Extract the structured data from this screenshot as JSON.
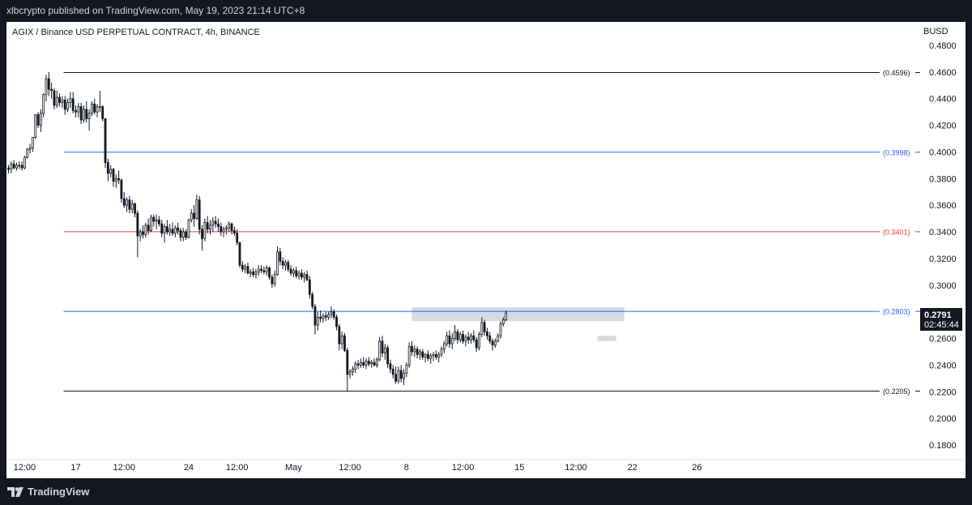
{
  "header": {
    "published": "xlbcrypto published on TradingView.com, May 19, 2023 21:14 UTC+8"
  },
  "footer": {
    "brand": "TradingView"
  },
  "chart_data": {
    "type": "candlestick",
    "title": "AGIX / Binance USD PERPETUAL CONTRACT, 4h, BINANCE",
    "currency": "BUSD",
    "ylim": [
      0.17,
      0.49
    ],
    "y_ticks": [
      "0.1800",
      "0.2000",
      "0.2200",
      "0.2400",
      "0.2600",
      "0.2800",
      "0.3000",
      "0.3200",
      "0.3400",
      "0.3600",
      "0.3800",
      "0.4000",
      "0.4200",
      "0.4400",
      "0.4600",
      "0.4800"
    ],
    "x_ticks": [
      {
        "label": "12:00",
        "bar": 6
      },
      {
        "label": "17",
        "bar": 25
      },
      {
        "label": "12:00",
        "bar": 43
      },
      {
        "label": "24",
        "bar": 67
      },
      {
        "label": "12:00",
        "bar": 85
      },
      {
        "label": "May",
        "bar": 106
      },
      {
        "label": "12:00",
        "bar": 127
      },
      {
        "label": "8",
        "bar": 148
      },
      {
        "label": "12:00",
        "bar": 169
      },
      {
        "label": "15",
        "bar": 190
      },
      {
        "label": "12:00",
        "bar": 211
      },
      {
        "label": "22",
        "bar": 232
      },
      {
        "label": "26",
        "bar": 256
      }
    ],
    "horizontal_lines": [
      {
        "value": 0.4596,
        "label": "(0.4596)",
        "color": "#131722"
      },
      {
        "value": 0.3998,
        "label": "(0.3998)",
        "color": "#2962ff"
      },
      {
        "value": 0.3401,
        "label": "(0.3401)",
        "color": "#f23645"
      },
      {
        "value": 0.2803,
        "label": "(0.2803)",
        "color": "#2962ff"
      },
      {
        "value": 0.2205,
        "label": "(0.2205)",
        "color": "#131722"
      }
    ],
    "zones": [
      {
        "bar_start": 150,
        "bar_end": 229,
        "top": 0.2835,
        "bottom": 0.273
      },
      {
        "bar_start": 219,
        "bar_end": 226,
        "top": 0.262,
        "bottom": 0.258
      }
    ],
    "last_price": "0.2791",
    "countdown": "02:45:44",
    "candles": [
      [
        0.388,
        0.39,
        0.384,
        0.387
      ],
      [
        0.387,
        0.393,
        0.384,
        0.391
      ],
      [
        0.391,
        0.394,
        0.387,
        0.388
      ],
      [
        0.388,
        0.392,
        0.386,
        0.39
      ],
      [
        0.39,
        0.393,
        0.387,
        0.39
      ],
      [
        0.39,
        0.393,
        0.386,
        0.388
      ],
      [
        0.388,
        0.397,
        0.387,
        0.396
      ],
      [
        0.396,
        0.403,
        0.395,
        0.402
      ],
      [
        0.402,
        0.406,
        0.399,
        0.403
      ],
      [
        0.403,
        0.411,
        0.4,
        0.411
      ],
      [
        0.411,
        0.428,
        0.41,
        0.428
      ],
      [
        0.428,
        0.43,
        0.418,
        0.42
      ],
      [
        0.42,
        0.432,
        0.415,
        0.429
      ],
      [
        0.429,
        0.444,
        0.426,
        0.443
      ],
      [
        0.443,
        0.458,
        0.438,
        0.455
      ],
      [
        0.455,
        0.46,
        0.442,
        0.447
      ],
      [
        0.447,
        0.452,
        0.44,
        0.446
      ],
      [
        0.446,
        0.448,
        0.432,
        0.435
      ],
      [
        0.435,
        0.446,
        0.433,
        0.441
      ],
      [
        0.441,
        0.444,
        0.434,
        0.437
      ],
      [
        0.437,
        0.442,
        0.433,
        0.439
      ],
      [
        0.439,
        0.442,
        0.428,
        0.432
      ],
      [
        0.432,
        0.44,
        0.43,
        0.437
      ],
      [
        0.437,
        0.445,
        0.433,
        0.44
      ],
      [
        0.44,
        0.445,
        0.429,
        0.431
      ],
      [
        0.431,
        0.435,
        0.426,
        0.43
      ],
      [
        0.43,
        0.437,
        0.426,
        0.434
      ],
      [
        0.434,
        0.437,
        0.421,
        0.424
      ],
      [
        0.424,
        0.435,
        0.422,
        0.432
      ],
      [
        0.432,
        0.438,
        0.422,
        0.425
      ],
      [
        0.425,
        0.432,
        0.416,
        0.429
      ],
      [
        0.429,
        0.438,
        0.427,
        0.436
      ],
      [
        0.436,
        0.44,
        0.428,
        0.43
      ],
      [
        0.43,
        0.436,
        0.426,
        0.434
      ],
      [
        0.434,
        0.446,
        0.43,
        0.434
      ],
      [
        0.434,
        0.435,
        0.423,
        0.425
      ],
      [
        0.425,
        0.425,
        0.388,
        0.392
      ],
      [
        0.392,
        0.395,
        0.378,
        0.384
      ],
      [
        0.384,
        0.39,
        0.381,
        0.387
      ],
      [
        0.387,
        0.388,
        0.374,
        0.378
      ],
      [
        0.378,
        0.383,
        0.373,
        0.38
      ],
      [
        0.38,
        0.386,
        0.376,
        0.379
      ],
      [
        0.379,
        0.38,
        0.362,
        0.365
      ],
      [
        0.365,
        0.37,
        0.358,
        0.36
      ],
      [
        0.36,
        0.366,
        0.355,
        0.364
      ],
      [
        0.364,
        0.367,
        0.354,
        0.357
      ],
      [
        0.357,
        0.364,
        0.354,
        0.361
      ],
      [
        0.361,
        0.362,
        0.351,
        0.354
      ],
      [
        0.354,
        0.356,
        0.321,
        0.337
      ],
      [
        0.337,
        0.342,
        0.333,
        0.34
      ],
      [
        0.34,
        0.345,
        0.335,
        0.338
      ],
      [
        0.338,
        0.347,
        0.336,
        0.345
      ],
      [
        0.345,
        0.35,
        0.338,
        0.341
      ],
      [
        0.341,
        0.353,
        0.34,
        0.351
      ],
      [
        0.351,
        0.353,
        0.344,
        0.348
      ],
      [
        0.348,
        0.353,
        0.342,
        0.349
      ],
      [
        0.349,
        0.352,
        0.344,
        0.346
      ],
      [
        0.346,
        0.349,
        0.336,
        0.339
      ],
      [
        0.339,
        0.346,
        0.332,
        0.344
      ],
      [
        0.344,
        0.349,
        0.338,
        0.34
      ],
      [
        0.34,
        0.346,
        0.337,
        0.342
      ],
      [
        0.342,
        0.347,
        0.337,
        0.339
      ],
      [
        0.339,
        0.345,
        0.336,
        0.343
      ],
      [
        0.343,
        0.347,
        0.338,
        0.341
      ],
      [
        0.341,
        0.343,
        0.333,
        0.336
      ],
      [
        0.336,
        0.343,
        0.333,
        0.34
      ],
      [
        0.34,
        0.342,
        0.334,
        0.336
      ],
      [
        0.336,
        0.35,
        0.335,
        0.349
      ],
      [
        0.349,
        0.357,
        0.347,
        0.354
      ],
      [
        0.354,
        0.36,
        0.344,
        0.35
      ],
      [
        0.35,
        0.368,
        0.349,
        0.364
      ],
      [
        0.364,
        0.367,
        0.338,
        0.342
      ],
      [
        0.342,
        0.345,
        0.326,
        0.335
      ],
      [
        0.335,
        0.35,
        0.333,
        0.347
      ],
      [
        0.347,
        0.352,
        0.339,
        0.342
      ],
      [
        0.342,
        0.349,
        0.338,
        0.345
      ],
      [
        0.345,
        0.351,
        0.34,
        0.348
      ],
      [
        0.348,
        0.352,
        0.343,
        0.346
      ],
      [
        0.346,
        0.35,
        0.34,
        0.344
      ],
      [
        0.344,
        0.347,
        0.337,
        0.34
      ],
      [
        0.34,
        0.344,
        0.336,
        0.342
      ],
      [
        0.342,
        0.345,
        0.338,
        0.343
      ],
      [
        0.343,
        0.348,
        0.34,
        0.346
      ],
      [
        0.346,
        0.347,
        0.338,
        0.341
      ],
      [
        0.341,
        0.344,
        0.337,
        0.339
      ],
      [
        0.339,
        0.342,
        0.33,
        0.332
      ],
      [
        0.332,
        0.332,
        0.313,
        0.315
      ],
      [
        0.315,
        0.318,
        0.31,
        0.312
      ],
      [
        0.312,
        0.316,
        0.309,
        0.314
      ],
      [
        0.314,
        0.317,
        0.308,
        0.309
      ],
      [
        0.309,
        0.312,
        0.306,
        0.31
      ],
      [
        0.31,
        0.313,
        0.306,
        0.308
      ],
      [
        0.308,
        0.312,
        0.305,
        0.31
      ],
      [
        0.31,
        0.315,
        0.307,
        0.312
      ],
      [
        0.312,
        0.315,
        0.309,
        0.311
      ],
      [
        0.311,
        0.314,
        0.308,
        0.31
      ],
      [
        0.31,
        0.315,
        0.307,
        0.313
      ],
      [
        0.313,
        0.314,
        0.304,
        0.306
      ],
      [
        0.306,
        0.308,
        0.298,
        0.301
      ],
      [
        0.301,
        0.311,
        0.299,
        0.308
      ],
      [
        0.308,
        0.329,
        0.307,
        0.325
      ],
      [
        0.325,
        0.328,
        0.315,
        0.318
      ],
      [
        0.318,
        0.321,
        0.312,
        0.315
      ],
      [
        0.315,
        0.319,
        0.311,
        0.317
      ],
      [
        0.317,
        0.319,
        0.31,
        0.312
      ],
      [
        0.312,
        0.315,
        0.307,
        0.309
      ],
      [
        0.309,
        0.313,
        0.306,
        0.311
      ],
      [
        0.311,
        0.314,
        0.305,
        0.307
      ],
      [
        0.307,
        0.311,
        0.304,
        0.309
      ],
      [
        0.309,
        0.312,
        0.304,
        0.306
      ],
      [
        0.306,
        0.31,
        0.302,
        0.308
      ],
      [
        0.308,
        0.311,
        0.303,
        0.304
      ],
      [
        0.304,
        0.307,
        0.29,
        0.293
      ],
      [
        0.293,
        0.295,
        0.282,
        0.284
      ],
      [
        0.284,
        0.286,
        0.263,
        0.27
      ],
      [
        0.27,
        0.28,
        0.266,
        0.276
      ],
      [
        0.276,
        0.281,
        0.272,
        0.275
      ],
      [
        0.275,
        0.279,
        0.272,
        0.277
      ],
      [
        0.277,
        0.28,
        0.273,
        0.276
      ],
      [
        0.276,
        0.28,
        0.274,
        0.278
      ],
      [
        0.278,
        0.284,
        0.275,
        0.28
      ],
      [
        0.28,
        0.282,
        0.274,
        0.276
      ],
      [
        0.276,
        0.278,
        0.266,
        0.269
      ],
      [
        0.269,
        0.271,
        0.251,
        0.256
      ],
      [
        0.256,
        0.265,
        0.252,
        0.262
      ],
      [
        0.262,
        0.264,
        0.25,
        0.251
      ],
      [
        0.251,
        0.253,
        0.22,
        0.233
      ],
      [
        0.233,
        0.237,
        0.23,
        0.235
      ],
      [
        0.235,
        0.239,
        0.232,
        0.237
      ],
      [
        0.237,
        0.243,
        0.234,
        0.241
      ],
      [
        0.241,
        0.244,
        0.237,
        0.24
      ],
      [
        0.24,
        0.245,
        0.238,
        0.242
      ],
      [
        0.242,
        0.246,
        0.238,
        0.24
      ],
      [
        0.24,
        0.245,
        0.237,
        0.243
      ],
      [
        0.243,
        0.246,
        0.239,
        0.241
      ],
      [
        0.241,
        0.244,
        0.238,
        0.242
      ],
      [
        0.242,
        0.245,
        0.239,
        0.24
      ],
      [
        0.24,
        0.246,
        0.238,
        0.244
      ],
      [
        0.244,
        0.261,
        0.243,
        0.258
      ],
      [
        0.258,
        0.262,
        0.246,
        0.249
      ],
      [
        0.249,
        0.256,
        0.244,
        0.253
      ],
      [
        0.253,
        0.255,
        0.238,
        0.241
      ],
      [
        0.241,
        0.244,
        0.234,
        0.237
      ],
      [
        0.237,
        0.24,
        0.23,
        0.233
      ],
      [
        0.233,
        0.239,
        0.226,
        0.228
      ],
      [
        0.228,
        0.239,
        0.226,
        0.236
      ],
      [
        0.236,
        0.24,
        0.227,
        0.23
      ],
      [
        0.23,
        0.237,
        0.225,
        0.234
      ],
      [
        0.234,
        0.242,
        0.231,
        0.24
      ],
      [
        0.24,
        0.257,
        0.238,
        0.254
      ],
      [
        0.254,
        0.258,
        0.247,
        0.25
      ],
      [
        0.25,
        0.255,
        0.246,
        0.252
      ],
      [
        0.252,
        0.254,
        0.245,
        0.248
      ],
      [
        0.248,
        0.252,
        0.244,
        0.25
      ],
      [
        0.25,
        0.252,
        0.244,
        0.246
      ],
      [
        0.246,
        0.249,
        0.242,
        0.248
      ],
      [
        0.248,
        0.251,
        0.243,
        0.245
      ],
      [
        0.245,
        0.249,
        0.241,
        0.247
      ],
      [
        0.247,
        0.25,
        0.243,
        0.248
      ],
      [
        0.248,
        0.251,
        0.244,
        0.246
      ],
      [
        0.246,
        0.25,
        0.242,
        0.248
      ],
      [
        0.248,
        0.254,
        0.246,
        0.252
      ],
      [
        0.252,
        0.258,
        0.249,
        0.256
      ],
      [
        0.256,
        0.265,
        0.254,
        0.262
      ],
      [
        0.262,
        0.266,
        0.253,
        0.256
      ],
      [
        0.256,
        0.264,
        0.252,
        0.26
      ],
      [
        0.26,
        0.27,
        0.258,
        0.265
      ],
      [
        0.265,
        0.267,
        0.256,
        0.259
      ],
      [
        0.259,
        0.265,
        0.257,
        0.263
      ],
      [
        0.263,
        0.266,
        0.256,
        0.258
      ],
      [
        0.258,
        0.263,
        0.254,
        0.261
      ],
      [
        0.261,
        0.265,
        0.256,
        0.259
      ],
      [
        0.259,
        0.264,
        0.256,
        0.262
      ],
      [
        0.262,
        0.266,
        0.257,
        0.259
      ],
      [
        0.259,
        0.261,
        0.25,
        0.253
      ],
      [
        0.253,
        0.265,
        0.251,
        0.263
      ],
      [
        0.263,
        0.276,
        0.261,
        0.272
      ],
      [
        0.272,
        0.274,
        0.262,
        0.265
      ],
      [
        0.265,
        0.268,
        0.259,
        0.262
      ],
      [
        0.262,
        0.265,
        0.256,
        0.258
      ],
      [
        0.258,
        0.26,
        0.251,
        0.255
      ],
      [
        0.255,
        0.26,
        0.253,
        0.258
      ],
      [
        0.258,
        0.264,
        0.257,
        0.262
      ],
      [
        0.262,
        0.273,
        0.26,
        0.271
      ],
      [
        0.271,
        0.276,
        0.269,
        0.274
      ],
      [
        0.274,
        0.281,
        0.273,
        0.2791
      ]
    ],
    "grid": false,
    "xlabel": "",
    "ylabel": ""
  }
}
